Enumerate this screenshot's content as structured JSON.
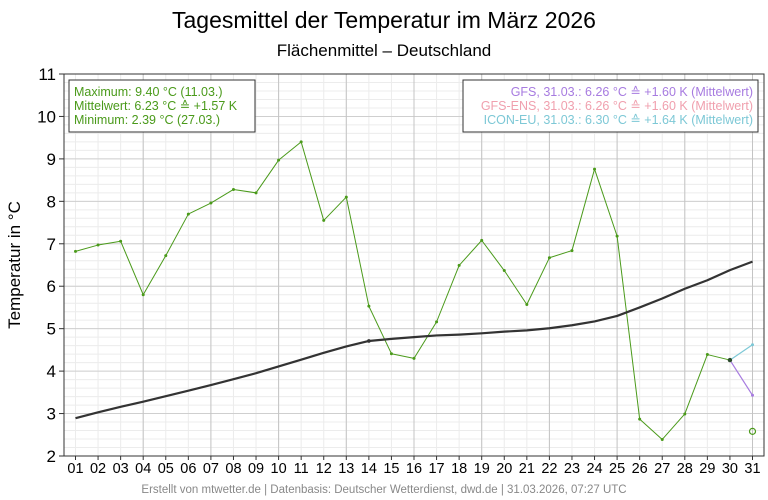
{
  "chart_data": {
    "type": "line",
    "title": "Tagesmittel der Temperatur im März 2026",
    "subtitle": "Flächenmittel – Deutschland",
    "ylabel": "Temperatur in °C",
    "xlabel": "",
    "ylim": [
      2,
      11
    ],
    "yticks": [
      "2",
      "3",
      "4",
      "5",
      "6",
      "7",
      "8",
      "9",
      "10",
      "11"
    ],
    "categories": [
      "01",
      "02",
      "03",
      "04",
      "05",
      "06",
      "07",
      "08",
      "09",
      "10",
      "11",
      "12",
      "13",
      "14",
      "15",
      "16",
      "17",
      "18",
      "19",
      "20",
      "21",
      "22",
      "23",
      "24",
      "25",
      "26",
      "27",
      "28",
      "29",
      "30",
      "31"
    ],
    "grid": true,
    "series": [
      {
        "name": "Tagesmittel",
        "color": "#4a9a1a",
        "values": [
          6.82,
          6.97,
          7.06,
          5.8,
          6.72,
          7.7,
          7.96,
          8.28,
          8.2,
          8.97,
          9.4,
          7.55,
          8.1,
          5.53,
          4.41,
          4.3,
          5.16,
          6.49,
          7.08,
          6.37,
          5.57,
          6.67,
          6.84,
          8.76,
          7.18,
          2.87,
          2.39,
          2.99,
          4.39,
          4.26,
          null
        ]
      },
      {
        "name": "Mittelwert",
        "color": "#333333",
        "values": [
          2.89,
          3.03,
          3.16,
          3.28,
          3.41,
          3.54,
          3.67,
          3.81,
          3.95,
          4.11,
          4.27,
          4.43,
          4.58,
          4.71,
          4.76,
          4.8,
          4.84,
          4.86,
          4.89,
          4.93,
          4.96,
          5.01,
          5.08,
          5.17,
          5.3,
          5.5,
          5.71,
          5.94,
          6.14,
          6.38,
          6.58
        ]
      }
    ],
    "forecasts": [
      {
        "name": "GFS",
        "color": "#a77be0",
        "x": [
          "30",
          "31"
        ],
        "values": [
          4.26,
          3.43
        ]
      },
      {
        "name": "ICON-EU",
        "color": "#7dc8d6",
        "x": [
          "30",
          "31"
        ],
        "values": [
          4.26,
          4.62
        ]
      }
    ],
    "marker": {
      "x": "31",
      "value": 2.58,
      "color": "#4a9a1a"
    },
    "stats_box": {
      "lines": [
        "Maximum: 9.40 °C  (11.03.)",
        "Mittelwert: 6.23 °C  ≙ +1.57 K",
        "Minimum:  2.39 °C  (27.03.)"
      ],
      "color": "#4a9a1a"
    },
    "forecast_box": {
      "lines": [
        {
          "text": "GFS, 31.03.: 6.26 °C  ≙ +1.60 K (Mittelwert)",
          "color": "#a77be0"
        },
        {
          "text": "GFS-ENS, 31.03.: 6.26 °C  ≙ +1.60 K (Mittelwert)",
          "color": "#f0a0ae"
        },
        {
          "text": "ICON-EU, 31.03.: 6.30 °C  ≙ +1.64 K (Mittelwert)",
          "color": "#7dc8d6"
        }
      ]
    },
    "footer": "Erstellt von mtwetter.de | Datenbasis: Deutscher Wetterdienst, dwd.de | 31.03.2026, 07:27 UTC"
  }
}
